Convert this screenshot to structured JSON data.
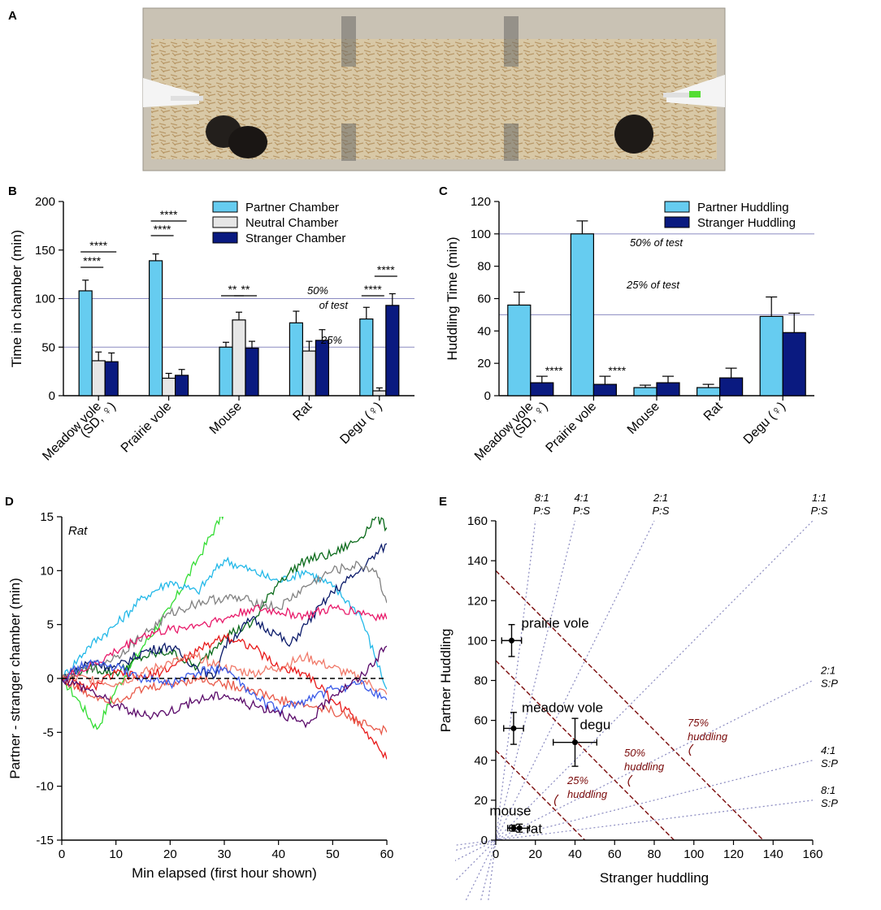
{
  "panel_labels": [
    "A",
    "B",
    "C",
    "D",
    "E"
  ],
  "photo": {
    "description_icon": "arena-photo-icon"
  },
  "colors": {
    "partner": "#66CCF0",
    "neutral": "#E6E6E6",
    "stranger": "#0A1A80",
    "guide": "#8A8AC0",
    "dark_red": "#7A0A0A",
    "text": "#000000"
  },
  "chart_data": [
    {
      "id": "B",
      "type": "bar",
      "ylabel": "Time in chamber (min)",
      "ylim": [
        0,
        200
      ],
      "yticks": [
        0,
        50,
        100,
        150,
        200
      ],
      "categories": [
        "Meadow vole",
        "Prairie vole",
        "Mouse",
        "Rat",
        "Degu (♀)"
      ],
      "category_sublabels": [
        "(SD, ♀)",
        "",
        "",
        "",
        ""
      ],
      "series": [
        {
          "name": "Partner Chamber",
          "values": [
            108,
            139,
            50,
            75,
            79
          ],
          "errors": [
            11,
            7,
            5,
            12,
            12
          ]
        },
        {
          "name": "Neutral Chamber",
          "values": [
            36,
            18,
            78,
            46,
            5
          ],
          "errors": [
            9,
            5,
            8,
            10,
            3
          ]
        },
        {
          "name": "Stranger Chamber",
          "values": [
            35,
            21,
            49,
            57,
            93
          ],
          "errors": [
            9,
            6,
            7,
            11,
            12
          ]
        }
      ],
      "reference_lines": [
        {
          "y": 100,
          "label1": "50%",
          "label2": "of test"
        },
        {
          "y": 50,
          "label1": "25%"
        }
      ],
      "significance": [
        {
          "group": 0,
          "pairs": [
            "****",
            "****"
          ]
        },
        {
          "group": 1,
          "pairs": [
            "****",
            "****"
          ]
        },
        {
          "group": 2,
          "pairs": [
            "**",
            "**"
          ]
        },
        {
          "group": 4,
          "pairs": [
            "****",
            "****"
          ]
        }
      ]
    },
    {
      "id": "C",
      "type": "bar",
      "ylabel": "Huddling Time (min)",
      "ylim": [
        0,
        120
      ],
      "yticks": [
        0,
        20,
        40,
        60,
        80,
        100,
        120
      ],
      "categories": [
        "Meadow vole",
        "Prairie vole",
        "Mouse",
        "Rat",
        "Degu (♀)"
      ],
      "category_sublabels": [
        "(SD, ♀)",
        "",
        "",
        "",
        ""
      ],
      "series": [
        {
          "name": "Partner Huddling",
          "values": [
            56,
            100,
            5,
            5,
            49
          ],
          "errors": [
            8,
            8,
            1.5,
            2,
            12
          ]
        },
        {
          "name": "Stranger Huddling",
          "values": [
            8,
            7,
            8,
            11,
            39
          ],
          "errors": [
            4,
            5,
            4,
            6,
            12
          ]
        }
      ],
      "reference_lines": [
        {
          "y": 100,
          "label1": "50% of test"
        },
        {
          "y": 50,
          "label1": "25% of test"
        }
      ],
      "significance": [
        {
          "group": 0,
          "label": "****"
        },
        {
          "group": 1,
          "label": "****"
        }
      ]
    },
    {
      "id": "D",
      "type": "line",
      "annotation": "Rat",
      "xlabel": "Min elapsed (first hour shown)",
      "ylabel": "Partner - stranger chamber (min)",
      "xlim": [
        0,
        60
      ],
      "ylim": [
        -15,
        15
      ],
      "xticks": [
        0,
        10,
        20,
        30,
        40,
        50,
        60
      ],
      "yticks": [
        -15,
        -10,
        -5,
        0,
        5,
        10,
        15
      ],
      "series": [
        {
          "name": "trace-green",
          "color": "#33DD33",
          "anchors": [
            [
              0,
              0
            ],
            [
              3,
              -2
            ],
            [
              6.5,
              -4.7
            ],
            [
              10,
              -1
            ],
            [
              15,
              3
            ],
            [
              20,
              6.5
            ],
            [
              25,
              11
            ],
            [
              30,
              15.5
            ]
          ]
        },
        {
          "name": "trace-lightblue",
          "color": "#22B8E8",
          "anchors": [
            [
              0,
              0
            ],
            [
              5,
              3
            ],
            [
              10,
              5
            ],
            [
              15,
              7.5
            ],
            [
              20,
              9
            ],
            [
              25,
              8
            ],
            [
              30,
              11
            ],
            [
              35,
              10
            ],
            [
              40,
              9
            ],
            [
              45,
              10
            ],
            [
              50,
              8.5
            ],
            [
              55,
              6
            ],
            [
              60,
              -1
            ]
          ]
        },
        {
          "name": "trace-darkgreen",
          "color": "#0A6A1A",
          "anchors": [
            [
              0,
              0
            ],
            [
              5,
              1
            ],
            [
              10,
              0.5
            ],
            [
              15,
              2
            ],
            [
              20,
              2.5
            ],
            [
              25,
              1
            ],
            [
              30,
              4
            ],
            [
              35,
              5
            ],
            [
              40,
              9
            ],
            [
              45,
              11
            ],
            [
              50,
              11.5
            ],
            [
              55,
              13
            ],
            [
              58,
              15
            ],
            [
              60,
              14
            ]
          ]
        },
        {
          "name": "trace-navy",
          "color": "#0A1A6A",
          "anchors": [
            [
              0,
              0
            ],
            [
              5,
              1.5
            ],
            [
              10,
              1
            ],
            [
              15,
              2.5
            ],
            [
              20,
              3
            ],
            [
              25,
              1
            ],
            [
              28,
              0
            ],
            [
              30,
              3
            ],
            [
              35,
              5.5
            ],
            [
              40,
              4
            ],
            [
              42,
              3
            ],
            [
              45,
              5
            ],
            [
              50,
              8
            ],
            [
              55,
              10
            ],
            [
              60,
              12.5
            ]
          ]
        },
        {
          "name": "trace-gray",
          "color": "#808080",
          "anchors": [
            [
              0,
              0
            ],
            [
              5,
              1
            ],
            [
              10,
              2
            ],
            [
              15,
              4
            ],
            [
              20,
              6
            ],
            [
              25,
              7
            ],
            [
              30,
              7.5
            ],
            [
              35,
              7.2
            ],
            [
              40,
              6.5
            ],
            [
              45,
              8.5
            ],
            [
              50,
              10
            ],
            [
              55,
              10.5
            ],
            [
              58,
              10
            ],
            [
              60,
              7
            ]
          ]
        },
        {
          "name": "trace-pink",
          "color": "#E81A6A",
          "anchors": [
            [
              0,
              0
            ],
            [
              5,
              1
            ],
            [
              10,
              2.5
            ],
            [
              15,
              4
            ],
            [
              20,
              4.5
            ],
            [
              25,
              5
            ],
            [
              30,
              5.5
            ],
            [
              35,
              6.5
            ],
            [
              40,
              6.2
            ],
            [
              45,
              5.8
            ],
            [
              50,
              6.5
            ],
            [
              55,
              6.2
            ],
            [
              60,
              5.5
            ]
          ]
        },
        {
          "name": "trace-red1",
          "color": "#E81A1A",
          "anchors": [
            [
              0,
              0
            ],
            [
              5,
              -1
            ],
            [
              10,
              0.5
            ],
            [
              15,
              0
            ],
            [
              20,
              1
            ],
            [
              25,
              2.5
            ],
            [
              30,
              4
            ],
            [
              35,
              3
            ],
            [
              40,
              1
            ],
            [
              45,
              0.5
            ],
            [
              50,
              -2
            ],
            [
              55,
              -4
            ],
            [
              60,
              -7.5
            ]
          ]
        },
        {
          "name": "trace-red2",
          "color": "#E85A4A",
          "anchors": [
            [
              0,
              0
            ],
            [
              5,
              -1.5
            ],
            [
              10,
              -2
            ],
            [
              15,
              -1
            ],
            [
              20,
              -0.5
            ],
            [
              25,
              0
            ],
            [
              30,
              -0.5
            ],
            [
              35,
              -1
            ],
            [
              40,
              -2
            ],
            [
              45,
              -2.5
            ],
            [
              50,
              -3
            ],
            [
              55,
              -4
            ],
            [
              60,
              -5
            ]
          ]
        },
        {
          "name": "trace-salmon",
          "color": "#F07A6A",
          "anchors": [
            [
              0,
              0
            ],
            [
              5,
              0
            ],
            [
              10,
              -0.5
            ],
            [
              15,
              0.5
            ],
            [
              20,
              1.5
            ],
            [
              25,
              2
            ],
            [
              30,
              1
            ],
            [
              35,
              0.5
            ],
            [
              40,
              1
            ],
            [
              45,
              2
            ],
            [
              50,
              1
            ],
            [
              55,
              0
            ],
            [
              60,
              -1.5
            ]
          ]
        },
        {
          "name": "trace-blue",
          "color": "#3A5AE8",
          "anchors": [
            [
              0,
              0
            ],
            [
              5,
              1.5
            ],
            [
              10,
              1
            ],
            [
              15,
              0
            ],
            [
              20,
              -0.5
            ],
            [
              25,
              0.5
            ],
            [
              30,
              1
            ],
            [
              35,
              -1.5
            ],
            [
              40,
              -3
            ],
            [
              45,
              -2
            ],
            [
              50,
              -1
            ],
            [
              55,
              -0.5
            ],
            [
              60,
              -2
            ]
          ]
        },
        {
          "name": "trace-purple",
          "color": "#5A0A6A",
          "anchors": [
            [
              0,
              0
            ],
            [
              5,
              -1
            ],
            [
              10,
              -2.5
            ],
            [
              15,
              -3.5
            ],
            [
              20,
              -3
            ],
            [
              25,
              -2
            ],
            [
              30,
              -1.5
            ],
            [
              35,
              -2.5
            ],
            [
              40,
              -3
            ],
            [
              45,
              -4.5
            ],
            [
              50,
              -1.5
            ],
            [
              55,
              0
            ],
            [
              60,
              3
            ]
          ]
        }
      ],
      "zero_line": 0
    },
    {
      "id": "E",
      "type": "scatter",
      "xlabel": "Stranger huddling",
      "ylabel": "Partner Huddling",
      "xlim": [
        0,
        160
      ],
      "ylim": [
        0,
        160
      ],
      "xticks": [
        0,
        20,
        40,
        60,
        80,
        100,
        120,
        140,
        160
      ],
      "yticks": [
        0,
        20,
        40,
        60,
        80,
        100,
        120,
        140,
        160
      ],
      "points": [
        {
          "name": "prairie vole",
          "x": 8,
          "y": 100,
          "xerr": 5,
          "yerr": 8
        },
        {
          "name": "meadow vole",
          "x": 9,
          "y": 56,
          "xerr": 5,
          "yerr": 8
        },
        {
          "name": "degu",
          "x": 40,
          "y": 49,
          "xerr": 11,
          "yerr": 12
        },
        {
          "name": "mouse",
          "x": 9,
          "y": 6,
          "xerr": 3,
          "yerr": 1.5
        },
        {
          "name": "rat",
          "x": 12,
          "y": 6,
          "xerr": 5,
          "yerr": 2
        }
      ],
      "ratio_lines": [
        {
          "slope": 8,
          "label1": "8:1",
          "label2": "P:S"
        },
        {
          "slope": 4,
          "label1": "4:1",
          "label2": "P:S"
        },
        {
          "slope": 2,
          "label1": "2:1",
          "label2": "P:S"
        },
        {
          "slope": 1,
          "label1": "1:1",
          "label2": "P:S"
        },
        {
          "slope": 0.5,
          "label1": "2:1",
          "label2": "S:P"
        },
        {
          "slope": 0.25,
          "label1": "4:1",
          "label2": "S:P"
        },
        {
          "slope": 0.125,
          "label1": "8:1",
          "label2": "S:P"
        }
      ],
      "percent_lines": [
        {
          "total": 45,
          "label1": "25%",
          "label2": "huddling"
        },
        {
          "total": 90,
          "label1": "50%",
          "label2": "huddling"
        },
        {
          "total": 135,
          "label1": "75%",
          "label2": "huddling"
        }
      ]
    }
  ]
}
